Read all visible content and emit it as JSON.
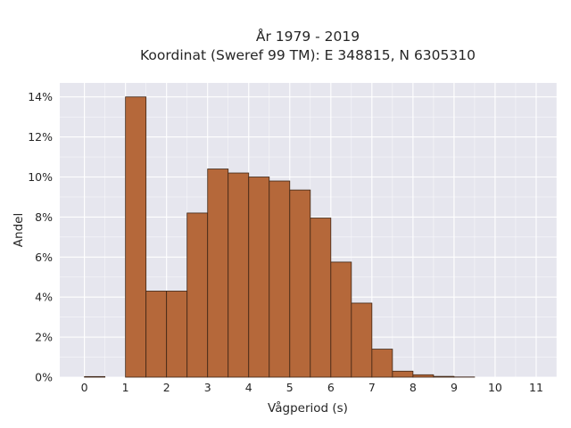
{
  "chart_data": {
    "type": "bar",
    "title": [
      "År 1979 - 2019",
      "Koordinat (Sweref 99 TM): E 348815, N 6305310"
    ],
    "xlabel": "Vågperiod (s)",
    "ylabel": "Andel",
    "bin_width": 0.5,
    "x": [
      0,
      0.5,
      1,
      1.5,
      2,
      2.5,
      3,
      3.5,
      4,
      4.5,
      5,
      5.5,
      6,
      6.5,
      7,
      7.5,
      8,
      8.5,
      9,
      9.5,
      10,
      10.5,
      11
    ],
    "values": [
      0.03,
      0,
      14.0,
      4.3,
      4.3,
      8.2,
      10.4,
      10.2,
      10.0,
      9.8,
      9.35,
      7.95,
      5.75,
      3.7,
      1.4,
      0.3,
      0.12,
      0.04,
      0.01,
      0,
      0,
      0,
      0
    ],
    "xlim": [
      -0.6,
      11.5
    ],
    "ylim": [
      0,
      14.7
    ],
    "xticks": [
      0,
      1,
      2,
      3,
      4,
      5,
      6,
      7,
      8,
      9,
      10,
      11
    ],
    "xtick_labels": [
      "0",
      "1",
      "2",
      "3",
      "4",
      "5",
      "6",
      "7",
      "8",
      "9",
      "10",
      "11"
    ],
    "yticks": [
      0,
      2,
      4,
      6,
      8,
      10,
      12,
      14
    ],
    "ytick_labels": [
      "0%",
      "2%",
      "4%",
      "6%",
      "8%",
      "10%",
      "12%",
      "14%"
    ],
    "grid": true,
    "colors": {
      "bar_fill": "#b5683a",
      "bar_edge": "#3d2414",
      "plot_background": "#e6e6ee",
      "grid": "#ffffff"
    }
  }
}
